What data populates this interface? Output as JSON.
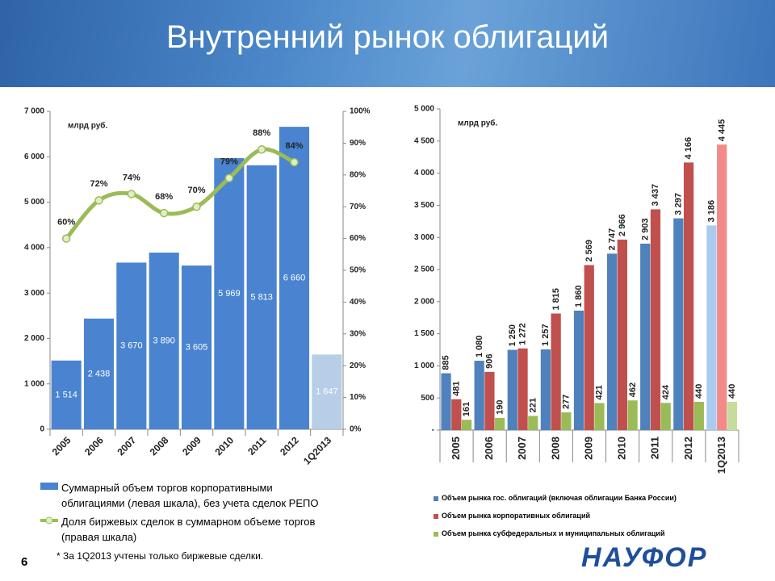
{
  "title": "Внутренний рынок облигаций",
  "footnote": "* За 1Q2013 учтены только биржевые сделки.",
  "page_number": "6",
  "logo": "НАУФОР",
  "chart_data": [
    {
      "type": "bar",
      "annotation": "млрд руб.",
      "legend": "bottom",
      "grid": false,
      "categories": [
        "2005",
        "2006",
        "2007",
        "2008",
        "2009",
        "2010",
        "2011",
        "2012",
        "1Q2013"
      ],
      "ylim": [
        0,
        7000
      ],
      "yticks": [
        0,
        {
          "value": 1000,
          "label": "1 000"
        },
        {
          "value": 2000,
          "label": "2 000"
        },
        {
          "value": 3000,
          "label": "3 000"
        },
        {
          "value": 4000,
          "label": "4 000"
        },
        {
          "value": 5000,
          "label": "5 000"
        },
        {
          "value": 6000,
          "label": "6 000"
        },
        {
          "value": 7000,
          "label": "7 000"
        }
      ],
      "y2lim": [
        0,
        100
      ],
      "y2ticks": [
        {
          "value": 0,
          "label": "0%"
        },
        {
          "value": 10,
          "label": "10%"
        },
        {
          "value": 20,
          "label": "20%"
        },
        {
          "value": 30,
          "label": "30%"
        },
        {
          "value": 40,
          "label": "40%"
        },
        {
          "value": 50,
          "label": "50%"
        },
        {
          "value": 60,
          "label": "60%"
        },
        {
          "value": 70,
          "label": "70%"
        },
        {
          "value": 80,
          "label": "80%"
        },
        {
          "value": 90,
          "label": "90%"
        },
        {
          "value": 100,
          "label": "100%"
        }
      ],
      "series": [
        {
          "name": "Суммарный объем торгов корпоративными облигациями (левая шкала), без учета сделок РЕПО",
          "type": "bar",
          "color": "#4a84d0",
          "colors": [
            "#4a84d0",
            "#4a84d0",
            "#4a84d0",
            "#4a84d0",
            "#4a84d0",
            "#4a84d0",
            "#4a84d0",
            "#4a84d0",
            "#b8cde6"
          ],
          "values": [
            1514,
            2438,
            3670,
            3890,
            3605,
            5969,
            5813,
            6660,
            1647
          ],
          "value_labels": [
            "1 514",
            "2 438",
            "3 670",
            "3 890",
            "3 605",
            "5 969",
            "5 813",
            "6 660",
            "1 647"
          ]
        },
        {
          "name": "Доля биржевых сделок в суммарном объеме торгов (правая шкала)",
          "type": "line",
          "axis": "y2",
          "color": "#9bbb59",
          "values": [
            60,
            72,
            74,
            68,
            70,
            79,
            88,
            84,
            null
          ],
          "value_labels": [
            "60%",
            "72%",
            "74%",
            "68%",
            "70%",
            "79%",
            "88%",
            "84%",
            null
          ]
        }
      ]
    },
    {
      "type": "bar",
      "annotation": "млрд руб.",
      "legend": "bottom",
      "grid": false,
      "categories": [
        "2005",
        "2006",
        "2007",
        "2008",
        "2009",
        "2010",
        "2011",
        "2012",
        "1Q2013"
      ],
      "ylim": [
        0,
        5000
      ],
      "yticks": [
        {
          "value": 0,
          "label": "-"
        },
        500,
        {
          "value": 1000,
          "label": "1 000"
        },
        {
          "value": 1500,
          "label": "1 500"
        },
        {
          "value": 2000,
          "label": "2 000"
        },
        {
          "value": 2500,
          "label": "2 500"
        },
        {
          "value": 3000,
          "label": "3 000"
        },
        {
          "value": 3500,
          "label": "3 500"
        },
        {
          "value": 4000,
          "label": "4 000"
        },
        {
          "value": 4500,
          "label": "4 500"
        },
        {
          "value": 5000,
          "label": "5 000"
        }
      ],
      "series": [
        {
          "name": "Объем рынка гос. облигаций (включая облигации Банка России)",
          "type": "bar",
          "color": "#4f81bd",
          "colors": [
            "#4f81bd",
            "#4f81bd",
            "#4f81bd",
            "#4f81bd",
            "#4f81bd",
            "#4f81bd",
            "#4f81bd",
            "#4f81bd",
            "#a9cbf0"
          ],
          "values": [
            885,
            1080,
            1250,
            1257,
            1860,
            2747,
            2903,
            3297,
            3186
          ],
          "value_labels": [
            "885",
            "1 080",
            "1 250",
            "1 257",
            "1 860",
            "2 747",
            "2 903",
            "3 297",
            "3 186"
          ]
        },
        {
          "name": "Объем рынка корпоративных облигаций",
          "type": "bar",
          "color": "#c0504d",
          "colors": [
            "#c0504d",
            "#c0504d",
            "#c0504d",
            "#c0504d",
            "#c0504d",
            "#c0504d",
            "#c0504d",
            "#c0504d",
            "#f28a8a"
          ],
          "values": [
            481,
            906,
            1272,
            1815,
            2569,
            2966,
            3437,
            4166,
            4445
          ],
          "value_labels": [
            "481",
            "906",
            "1 272",
            "1 815",
            "2 569",
            "2 966",
            "3 437",
            "4 166",
            "4 445"
          ]
        },
        {
          "name": "Объем рынка субфедеральных и муниципальных облигаций",
          "type": "bar",
          "color": "#9bbb59",
          "colors": [
            "#9bbb59",
            "#9bbb59",
            "#9bbb59",
            "#9bbb59",
            "#9bbb59",
            "#9bbb59",
            "#9bbb59",
            "#9bbb59",
            "#c6dc9c"
          ],
          "values": [
            161,
            190,
            221,
            277,
            421,
            462,
            424,
            440,
            440
          ],
          "value_labels": [
            "161",
            "190",
            "221",
            "277",
            "421",
            "462",
            "424",
            "440",
            "440"
          ]
        }
      ]
    }
  ]
}
